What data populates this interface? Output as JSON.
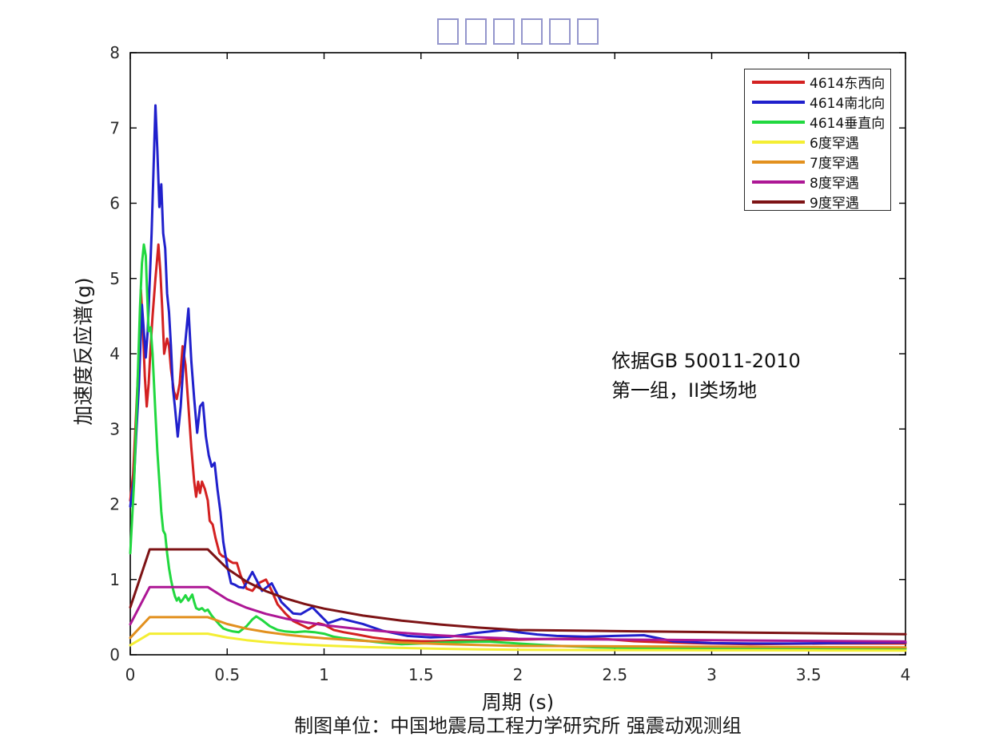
{
  "title": {
    "note": "title rendered as missing-glyph boxes in source figure",
    "missing_glyph_box_count": 6,
    "box_color": "#9496cc"
  },
  "annotation": {
    "line1": "依据GB 50011-2010",
    "line2": "第一组，II类场地"
  },
  "caption": "制图单位：中国地震局工程力学研究所 强震动观测组",
  "chart_data": {
    "type": "line",
    "title": "",
    "xlabel": "周期 (s)",
    "ylabel": "加速度反应谱(g)",
    "xlim": [
      0,
      4
    ],
    "ylim": [
      0,
      8
    ],
    "grid": false,
    "legend_position": "top-right",
    "x_ticks": [
      0,
      0.5,
      1,
      1.5,
      2,
      2.5,
      3,
      3.5,
      4
    ],
    "x_tick_labels": [
      "0",
      "0.5",
      "1",
      "1.5",
      "2",
      "2.5",
      "3",
      "3.5",
      "4"
    ],
    "y_ticks": [
      0,
      1,
      2,
      3,
      4,
      5,
      6,
      7,
      8
    ],
    "y_tick_labels": [
      "0",
      "1",
      "2",
      "3",
      "4",
      "5",
      "6",
      "7",
      "8"
    ],
    "series": [
      {
        "key": "ew",
        "name": "4614东西向",
        "color": "#d32121",
        "points": [
          [
            0,
            2.05
          ],
          [
            0.015,
            2.4
          ],
          [
            0.03,
            3.2
          ],
          [
            0.045,
            4.0
          ],
          [
            0.055,
            4.85
          ],
          [
            0.065,
            4.35
          ],
          [
            0.075,
            3.7
          ],
          [
            0.085,
            3.3
          ],
          [
            0.095,
            3.6
          ],
          [
            0.105,
            4.1
          ],
          [
            0.115,
            4.5
          ],
          [
            0.13,
            5.0
          ],
          [
            0.145,
            5.45
          ],
          [
            0.155,
            5.1
          ],
          [
            0.165,
            4.6
          ],
          [
            0.175,
            4.0
          ],
          [
            0.19,
            4.2
          ],
          [
            0.2,
            4.1
          ],
          [
            0.21,
            3.8
          ],
          [
            0.225,
            3.5
          ],
          [
            0.24,
            3.4
          ],
          [
            0.255,
            3.6
          ],
          [
            0.27,
            4.1
          ],
          [
            0.285,
            3.85
          ],
          [
            0.3,
            3.3
          ],
          [
            0.315,
            2.75
          ],
          [
            0.33,
            2.3
          ],
          [
            0.34,
            2.1
          ],
          [
            0.35,
            2.3
          ],
          [
            0.36,
            2.15
          ],
          [
            0.37,
            2.3
          ],
          [
            0.385,
            2.2
          ],
          [
            0.4,
            2.05
          ],
          [
            0.41,
            1.78
          ],
          [
            0.425,
            1.73
          ],
          [
            0.44,
            1.55
          ],
          [
            0.46,
            1.35
          ],
          [
            0.475,
            1.31
          ],
          [
            0.49,
            1.3
          ],
          [
            0.51,
            1.25
          ],
          [
            0.53,
            1.22
          ],
          [
            0.55,
            1.22
          ],
          [
            0.57,
            1.05
          ],
          [
            0.6,
            0.88
          ],
          [
            0.63,
            0.85
          ],
          [
            0.66,
            0.95
          ],
          [
            0.7,
            1.0
          ],
          [
            0.73,
            0.85
          ],
          [
            0.76,
            0.67
          ],
          [
            0.8,
            0.55
          ],
          [
            0.84,
            0.45
          ],
          [
            0.88,
            0.4
          ],
          [
            0.92,
            0.35
          ],
          [
            0.97,
            0.42
          ],
          [
            1.0,
            0.4
          ],
          [
            1.05,
            0.33
          ],
          [
            1.1,
            0.3
          ],
          [
            1.17,
            0.27
          ],
          [
            1.25,
            0.23
          ],
          [
            1.31,
            0.21
          ],
          [
            1.4,
            0.19
          ],
          [
            1.5,
            0.18
          ],
          [
            1.6,
            0.18
          ],
          [
            1.7,
            0.19
          ],
          [
            1.8,
            0.19
          ],
          [
            1.9,
            0.2
          ],
          [
            2.0,
            0.2
          ],
          [
            2.15,
            0.21
          ],
          [
            2.3,
            0.215
          ],
          [
            2.45,
            0.21
          ],
          [
            2.6,
            0.18
          ],
          [
            2.75,
            0.165
          ],
          [
            2.9,
            0.155
          ],
          [
            3.0,
            0.15
          ],
          [
            3.2,
            0.14
          ],
          [
            3.4,
            0.145
          ],
          [
            3.6,
            0.15
          ],
          [
            3.8,
            0.15
          ],
          [
            4.0,
            0.15
          ]
        ]
      },
      {
        "key": "ns",
        "name": "4614南北向",
        "color": "#2020cc",
        "points": [
          [
            0,
            1.97
          ],
          [
            0.02,
            2.35
          ],
          [
            0.03,
            2.9
          ],
          [
            0.045,
            3.6
          ],
          [
            0.06,
            4.65
          ],
          [
            0.07,
            4.3
          ],
          [
            0.08,
            3.95
          ],
          [
            0.09,
            4.3
          ],
          [
            0.1,
            4.95
          ],
          [
            0.11,
            5.6
          ],
          [
            0.13,
            7.3
          ],
          [
            0.14,
            6.7
          ],
          [
            0.15,
            5.95
          ],
          [
            0.16,
            6.25
          ],
          [
            0.17,
            5.6
          ],
          [
            0.18,
            5.4
          ],
          [
            0.19,
            4.8
          ],
          [
            0.2,
            4.55
          ],
          [
            0.21,
            4.1
          ],
          [
            0.22,
            3.55
          ],
          [
            0.23,
            3.3
          ],
          [
            0.245,
            2.9
          ],
          [
            0.26,
            3.3
          ],
          [
            0.275,
            3.9
          ],
          [
            0.3,
            4.6
          ],
          [
            0.315,
            3.9
          ],
          [
            0.33,
            3.4
          ],
          [
            0.345,
            2.95
          ],
          [
            0.36,
            3.3
          ],
          [
            0.375,
            3.35
          ],
          [
            0.39,
            2.9
          ],
          [
            0.405,
            2.65
          ],
          [
            0.42,
            2.5
          ],
          [
            0.435,
            2.55
          ],
          [
            0.45,
            2.2
          ],
          [
            0.465,
            1.9
          ],
          [
            0.48,
            1.5
          ],
          [
            0.5,
            1.18
          ],
          [
            0.52,
            0.95
          ],
          [
            0.54,
            0.93
          ],
          [
            0.56,
            0.9
          ],
          [
            0.585,
            0.89
          ],
          [
            0.63,
            1.1
          ],
          [
            0.68,
            0.85
          ],
          [
            0.73,
            0.95
          ],
          [
            0.78,
            0.7
          ],
          [
            0.84,
            0.55
          ],
          [
            0.88,
            0.54
          ],
          [
            0.94,
            0.63
          ],
          [
            1.02,
            0.42
          ],
          [
            1.09,
            0.48
          ],
          [
            1.2,
            0.41
          ],
          [
            1.3,
            0.32
          ],
          [
            1.43,
            0.25
          ],
          [
            1.55,
            0.23
          ],
          [
            1.65,
            0.24
          ],
          [
            1.78,
            0.29
          ],
          [
            1.93,
            0.33
          ],
          [
            2.0,
            0.3
          ],
          [
            2.1,
            0.27
          ],
          [
            2.2,
            0.25
          ],
          [
            2.35,
            0.24
          ],
          [
            2.5,
            0.25
          ],
          [
            2.65,
            0.26
          ],
          [
            2.8,
            0.18
          ],
          [
            3.0,
            0.155
          ],
          [
            3.2,
            0.15
          ],
          [
            3.4,
            0.15
          ],
          [
            3.6,
            0.155
          ],
          [
            3.8,
            0.16
          ],
          [
            4.0,
            0.165
          ]
        ]
      },
      {
        "key": "ud",
        "name": "4614垂直向",
        "color": "#21d83f",
        "points": [
          [
            0,
            1.35
          ],
          [
            0.02,
            2.3
          ],
          [
            0.035,
            3.4
          ],
          [
            0.05,
            4.6
          ],
          [
            0.06,
            5.2
          ],
          [
            0.07,
            5.45
          ],
          [
            0.08,
            5.3
          ],
          [
            0.09,
            4.6
          ],
          [
            0.095,
            4.3
          ],
          [
            0.105,
            4.35
          ],
          [
            0.115,
            4.0
          ],
          [
            0.13,
            3.2
          ],
          [
            0.14,
            2.7
          ],
          [
            0.15,
            2.3
          ],
          [
            0.16,
            1.9
          ],
          [
            0.17,
            1.65
          ],
          [
            0.18,
            1.6
          ],
          [
            0.19,
            1.35
          ],
          [
            0.2,
            1.15
          ],
          [
            0.21,
            1.0
          ],
          [
            0.22,
            0.88
          ],
          [
            0.23,
            0.78
          ],
          [
            0.24,
            0.72
          ],
          [
            0.25,
            0.76
          ],
          [
            0.26,
            0.7
          ],
          [
            0.27,
            0.73
          ],
          [
            0.285,
            0.79
          ],
          [
            0.3,
            0.72
          ],
          [
            0.31,
            0.76
          ],
          [
            0.32,
            0.8
          ],
          [
            0.33,
            0.7
          ],
          [
            0.34,
            0.62
          ],
          [
            0.355,
            0.6
          ],
          [
            0.37,
            0.62
          ],
          [
            0.385,
            0.58
          ],
          [
            0.4,
            0.6
          ],
          [
            0.42,
            0.52
          ],
          [
            0.44,
            0.46
          ],
          [
            0.46,
            0.4
          ],
          [
            0.48,
            0.35
          ],
          [
            0.5,
            0.33
          ],
          [
            0.53,
            0.31
          ],
          [
            0.56,
            0.3
          ],
          [
            0.6,
            0.38
          ],
          [
            0.63,
            0.47
          ],
          [
            0.65,
            0.51
          ],
          [
            0.68,
            0.46
          ],
          [
            0.72,
            0.38
          ],
          [
            0.76,
            0.33
          ],
          [
            0.8,
            0.31
          ],
          [
            0.85,
            0.3
          ],
          [
            0.9,
            0.31
          ],
          [
            0.95,
            0.3
          ],
          [
            1.0,
            0.28
          ],
          [
            1.05,
            0.24
          ],
          [
            1.1,
            0.22
          ],
          [
            1.2,
            0.19
          ],
          [
            1.3,
            0.16
          ],
          [
            1.4,
            0.14
          ],
          [
            1.5,
            0.15
          ],
          [
            1.6,
            0.16
          ],
          [
            1.7,
            0.17
          ],
          [
            1.85,
            0.175
          ],
          [
            2.0,
            0.15
          ],
          [
            2.2,
            0.12
          ],
          [
            2.4,
            0.1
          ],
          [
            2.6,
            0.09
          ],
          [
            2.8,
            0.085
          ],
          [
            3.0,
            0.08
          ],
          [
            3.3,
            0.075
          ],
          [
            3.6,
            0.075
          ],
          [
            4.0,
            0.08
          ]
        ]
      },
      {
        "key": "rare6",
        "name": "6度罕遇",
        "color": "#f4ee33",
        "points": [
          [
            0,
            0.126
          ],
          [
            0.1,
            0.28
          ],
          [
            0.4,
            0.28
          ],
          [
            0.5,
            0.229
          ],
          [
            0.6,
            0.194
          ],
          [
            0.7,
            0.169
          ],
          [
            0.8,
            0.15
          ],
          [
            0.9,
            0.135
          ],
          [
            1.0,
            0.123
          ],
          [
            1.2,
            0.104
          ],
          [
            1.4,
            0.091
          ],
          [
            1.6,
            0.08
          ],
          [
            1.8,
            0.072
          ],
          [
            2.0,
            0.066
          ],
          [
            2.4,
            0.063
          ],
          [
            2.8,
            0.061
          ],
          [
            3.2,
            0.059
          ],
          [
            3.6,
            0.057
          ],
          [
            4.0,
            0.055
          ]
        ]
      },
      {
        "key": "rare7",
        "name": "7度罕遇",
        "color": "#e2901e",
        "points": [
          [
            0,
            0.225
          ],
          [
            0.1,
            0.5
          ],
          [
            0.4,
            0.5
          ],
          [
            0.5,
            0.409
          ],
          [
            0.6,
            0.347
          ],
          [
            0.7,
            0.302
          ],
          [
            0.8,
            0.268
          ],
          [
            0.9,
            0.241
          ],
          [
            1.0,
            0.219
          ],
          [
            1.2,
            0.186
          ],
          [
            1.4,
            0.162
          ],
          [
            1.6,
            0.143
          ],
          [
            1.8,
            0.129
          ],
          [
            2.0,
            0.118
          ],
          [
            2.4,
            0.113
          ],
          [
            2.8,
            0.109
          ],
          [
            3.2,
            0.105
          ],
          [
            3.6,
            0.101
          ],
          [
            4.0,
            0.098
          ]
        ]
      },
      {
        "key": "rare8",
        "name": "8度罕遇",
        "color": "#ad1795",
        "points": [
          [
            0,
            0.405
          ],
          [
            0.1,
            0.9
          ],
          [
            0.4,
            0.9
          ],
          [
            0.5,
            0.736
          ],
          [
            0.6,
            0.625
          ],
          [
            0.7,
            0.543
          ],
          [
            0.8,
            0.482
          ],
          [
            0.9,
            0.434
          ],
          [
            1.0,
            0.394
          ],
          [
            1.2,
            0.335
          ],
          [
            1.4,
            0.292
          ],
          [
            1.6,
            0.258
          ],
          [
            1.8,
            0.232
          ],
          [
            2.0,
            0.212
          ],
          [
            2.4,
            0.204
          ],
          [
            2.8,
            0.197
          ],
          [
            3.2,
            0.19
          ],
          [
            3.6,
            0.183
          ],
          [
            4.0,
            0.176
          ]
        ]
      },
      {
        "key": "rare9",
        "name": "9度罕遇",
        "color": "#7d1315",
        "points": [
          [
            0,
            0.63
          ],
          [
            0.1,
            1.4
          ],
          [
            0.4,
            1.4
          ],
          [
            0.5,
            1.145
          ],
          [
            0.6,
            0.972
          ],
          [
            0.7,
            0.845
          ],
          [
            0.8,
            0.75
          ],
          [
            0.9,
            0.675
          ],
          [
            1.0,
            0.613
          ],
          [
            1.2,
            0.521
          ],
          [
            1.4,
            0.454
          ],
          [
            1.6,
            0.402
          ],
          [
            1.8,
            0.361
          ],
          [
            2.0,
            0.329
          ],
          [
            2.4,
            0.318
          ],
          [
            2.8,
            0.307
          ],
          [
            3.2,
            0.295
          ],
          [
            3.6,
            0.284
          ],
          [
            4.0,
            0.273
          ]
        ]
      }
    ]
  }
}
